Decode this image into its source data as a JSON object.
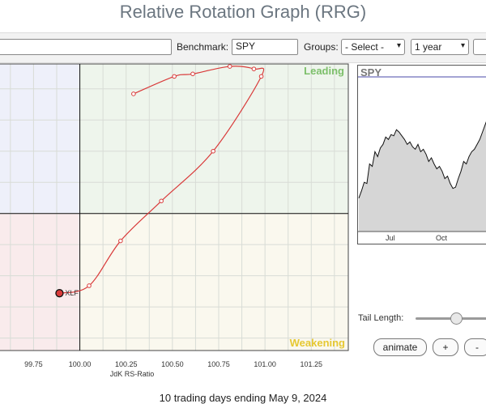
{
  "title": "Relative Rotation Graph (RRG)",
  "toolbar": {
    "benchmark_label": "Benchmark:",
    "benchmark_value": "SPY",
    "groups_label": "Groups:",
    "groups_value": "- Select -",
    "period_value": "1 year"
  },
  "quadrants": {
    "leading": "Leading",
    "weakening": "Weakening",
    "colors": {
      "leading_bg": "#eef5ec",
      "weakening_bg": "#faf8ee",
      "lagging_bg": "#f9ebec",
      "improving_bg": "#eef0fa",
      "leading_text": "#7cbf6a",
      "weakening_text": "#e6c832"
    }
  },
  "chart_data": {
    "type": "scatter",
    "xlabel": "JdK RS-Ratio",
    "x_ticks": [
      "99.75",
      "100.00",
      "100.25",
      "100.50",
      "100.75",
      "101.00",
      "101.25"
    ],
    "xlim": [
      99.56,
      101.45
    ],
    "ylim": [
      99.45,
      100.6
    ],
    "center": [
      100.0,
      100.0
    ],
    "series": [
      {
        "name": "XLF",
        "color": "#d93a3a",
        "points": [
          {
            "x": 100.29,
            "y": 100.48
          },
          {
            "x": 100.51,
            "y": 100.55
          },
          {
            "x": 100.61,
            "y": 100.56
          },
          {
            "x": 100.81,
            "y": 100.59
          },
          {
            "x": 100.94,
            "y": 100.58
          },
          {
            "x": 100.98,
            "y": 100.55
          },
          {
            "x": 100.72,
            "y": 100.25
          },
          {
            "x": 100.44,
            "y": 100.05
          },
          {
            "x": 100.22,
            "y": 99.89
          },
          {
            "x": 100.05,
            "y": 99.71
          },
          {
            "x": 99.89,
            "y": 99.68
          }
        ]
      }
    ]
  },
  "minichart": {
    "symbol": "SPY",
    "x_labels": [
      "Jul",
      "Oct"
    ],
    "values": [
      0.22,
      0.28,
      0.35,
      0.34,
      0.5,
      0.48,
      0.6,
      0.56,
      0.63,
      0.66,
      0.72,
      0.7,
      0.74,
      0.73,
      0.78,
      0.76,
      0.73,
      0.7,
      0.66,
      0.68,
      0.64,
      0.62,
      0.66,
      0.6,
      0.62,
      0.58,
      0.52,
      0.55,
      0.5,
      0.46,
      0.48,
      0.44,
      0.38,
      0.4,
      0.34,
      0.3,
      0.31,
      0.38,
      0.44,
      0.52,
      0.5,
      0.56,
      0.6,
      0.62,
      0.66,
      0.7,
      0.76,
      0.82,
      0.88,
      0.94,
      0.97
    ],
    "colors": {
      "line": "#111111",
      "fill": "#d6d6d6",
      "baseline": "#4a4aa8"
    }
  },
  "controls": {
    "tail_length_label": "Tail Length:",
    "tail_length_value": 0.55,
    "animate_label": "animate",
    "plus_label": "+",
    "minus_label": "-"
  },
  "footer": {
    "period_text": "10 trading days ending May 9, 2024"
  }
}
